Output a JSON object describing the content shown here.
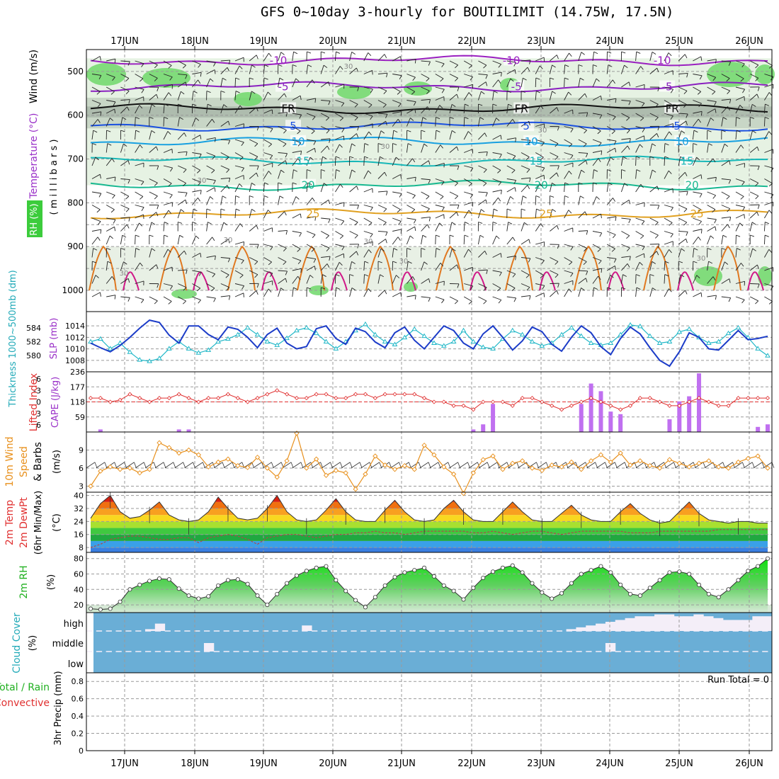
{
  "title": "GFS 0~10day 3-hourly for BOUTILIMIT (14.75W, 17.5N)",
  "dates": [
    "17JUN",
    "18JUN",
    "19JUN",
    "20JUN",
    "21JUN",
    "22JUN",
    "23JUN",
    "24JUN",
    "25JUN",
    "26JUN"
  ],
  "run_total_label": "Run Total = 0",
  "colors": {
    "frame": "#000000",
    "grid": "#9a9a9a",
    "slp": "#1c3cc8",
    "thickness": "#22b8c8",
    "lifted": "#e03030",
    "cape": "#c070f0",
    "wind": "#e8901c",
    "rh": "#22c422",
    "cloud": "#6aaed6",
    "clear": "#f4eef8",
    "label_red": "#e03030",
    "label_purple": "#9a30c8",
    "label_green": "#20b020",
    "label_blue": "#2050e0",
    "label_orange": "#e8901c",
    "label_cyan": "#22aab8"
  },
  "panel_labels": {
    "upper": {
      "wind": "Wind (m/s)",
      "temp": "Temperature (°C)",
      "rh": "RH (%)",
      "pressure": "( m i l l i b a r s )"
    },
    "slp": {
      "thickness": "Thickness 1000~500mb (dm)",
      "slp": "SLP (mb)"
    },
    "stability": {
      "li": "Lifted Index",
      "cape": "CAPE (J/kg)"
    },
    "wind10": {
      "a": "10m Wind",
      "b": "Speed",
      "c": "& Barbs",
      "unit": "(m/s)"
    },
    "temp2m": {
      "a": "2m Temp",
      "b": "2m DewPt",
      "c": "(6hr Min/Max)",
      "unit": "(°C)"
    },
    "rh2m": {
      "a": "2m RH",
      "unit": "(%)"
    },
    "cloud": {
      "a": "Cloud Cover",
      "unit": "(%)"
    },
    "precip": {
      "a": "Total / Rain",
      "b": "Convective",
      "c": "3hr Precip (mm)"
    }
  },
  "chart_data": [
    {
      "type": "contour",
      "panel": "upper-air",
      "ylabel": "millibars",
      "yticks": [
        500,
        600,
        700,
        800,
        900,
        1000
      ],
      "ylim": [
        450,
        1000
      ],
      "temperature_contours": [
        {
          "label": "-10",
          "pressure": 475
        },
        {
          "label": "-5",
          "pressure": 535
        },
        {
          "label": "FR",
          "pressure": 585
        },
        {
          "label": "5",
          "pressure": 625
        },
        {
          "label": "10",
          "pressure": 660
        },
        {
          "label": "15",
          "pressure": 705
        },
        {
          "label": "20",
          "pressure": 760
        },
        {
          "label": "25",
          "pressure": 825
        }
      ],
      "rh_label": "30"
    },
    {
      "type": "line",
      "panel": "SLP / thickness",
      "slp_ticks": [
        1008,
        1010,
        1012,
        1014
      ],
      "thickness_ticks": [
        580,
        582,
        584
      ],
      "slp_series": [
        1011.0,
        1010.2,
        1009.5,
        1010.6,
        1012.0,
        1013.6,
        1015.0,
        1014.6,
        1012.4,
        1011.0,
        1014.0,
        1014.0,
        1012.5,
        1011.6,
        1013.8,
        1013.4,
        1012.0,
        1010.2,
        1012.5,
        1013.6,
        1011.0,
        1010.0,
        1010.4,
        1013.5,
        1014.0,
        1011.8,
        1010.8,
        1013.6,
        1013.0,
        1011.2,
        1010.2,
        1012.8,
        1013.8,
        1011.5,
        1010.0,
        1012.0,
        1014.0,
        1013.2,
        1011.0,
        1010.0,
        1012.6,
        1014.0,
        1012.0,
        1009.8,
        1011.4,
        1013.8,
        1013.0,
        1010.8,
        1009.6,
        1012.0,
        1014.0,
        1012.8,
        1010.4,
        1009.0,
        1011.8,
        1013.8,
        1012.6,
        1010.2,
        1008.0,
        1007.0,
        1009.5,
        1012.8,
        1012.0,
        1010.0,
        1009.8,
        1011.5,
        1013.2,
        1011.6,
        1011.8,
        1012.2
      ],
      "thickness_series": [
        582.0,
        582.4,
        581.0,
        581.8,
        580.5,
        579.4,
        579.2,
        579.6,
        581.0,
        582.0,
        581.0,
        580.4,
        580.8,
        582.0,
        582.4,
        583.0,
        584.0,
        583.0,
        582.0,
        581.5,
        582.5,
        583.6,
        584.0,
        583.2,
        582.0,
        581.0,
        582.0,
        583.6,
        584.5,
        583.0,
        582.0,
        581.6,
        582.6,
        583.8,
        582.8,
        581.8,
        581.4,
        582.0,
        583.6,
        582.0,
        581.2,
        581.0,
        582.4,
        583.6,
        583.0,
        582.0,
        581.4,
        581.8,
        583.0,
        584.0,
        582.8,
        581.8,
        581.5,
        581.8,
        583.0,
        584.4,
        584.2,
        582.8,
        581.8,
        582.0,
        583.4,
        583.8,
        582.6,
        581.8,
        582.0,
        583.2,
        584.0,
        582.6,
        581.0,
        580.0
      ]
    },
    {
      "type": "bar+line",
      "panel": "Lifted Index / CAPE",
      "li_ticks": [
        -6,
        -3,
        0,
        3,
        6
      ],
      "cape_ticks": [
        59,
        118,
        177,
        236
      ],
      "li_series": [
        -1,
        -1,
        0,
        -0.5,
        -2,
        -1,
        0,
        -1,
        -1,
        -2,
        -1,
        0,
        -1,
        -1,
        -2,
        -1,
        0,
        -1,
        -2,
        -3,
        -2,
        -1,
        -1,
        -2,
        -2,
        -1,
        -1,
        -2,
        -2,
        -1,
        -2,
        -2,
        -2,
        -2,
        -1,
        0,
        0,
        1,
        1,
        2,
        0,
        0,
        0,
        1,
        -1,
        -1,
        0,
        1,
        2,
        1,
        0,
        -1,
        0,
        1,
        2,
        1,
        -1,
        -1,
        0,
        1,
        1,
        0,
        -1,
        0,
        1,
        1,
        -1,
        -1,
        -1,
        -1
      ],
      "cape_series": [
        0,
        10,
        0,
        0,
        0,
        0,
        0,
        0,
        0,
        10,
        10,
        0,
        0,
        0,
        0,
        0,
        0,
        0,
        0,
        0,
        0,
        0,
        0,
        0,
        0,
        0,
        0,
        0,
        0,
        0,
        0,
        0,
        0,
        0,
        0,
        0,
        0,
        0,
        0,
        10,
        30,
        110,
        0,
        0,
        0,
        0,
        0,
        0,
        0,
        0,
        110,
        190,
        160,
        80,
        70,
        0,
        0,
        0,
        0,
        50,
        120,
        140,
        230,
        0,
        0,
        0,
        0,
        0,
        20,
        30
      ]
    },
    {
      "type": "line",
      "panel": "10m Wind Speed",
      "ylim": [
        2,
        12
      ],
      "yticks": [
        3,
        6,
        9
      ],
      "series": [
        3.0,
        5.5,
        6.2,
        5.8,
        6.0,
        5.2,
        5.8,
        10.2,
        9.4,
        8.5,
        9.0,
        8.2,
        6.2,
        7.0,
        7.5,
        6.4,
        6.1,
        7.8,
        6.0,
        4.5,
        7.2,
        11.8,
        6.0,
        7.5,
        4.8,
        5.6,
        5.2,
        2.5,
        5.0,
        8.0,
        6.5,
        5.8,
        6.4,
        5.8,
        9.8,
        8.2,
        6.2,
        5.0,
        1.8,
        5.2,
        7.4,
        8.0,
        5.8,
        6.8,
        7.2,
        6.0,
        5.6,
        6.5,
        6.2,
        7.0,
        5.8,
        7.2,
        8.2,
        7.0,
        8.5,
        6.5,
        7.2,
        6.4,
        6.0,
        7.4,
        6.8,
        6.2,
        6.8,
        7.2,
        6.2,
        6.0,
        7.0,
        7.6,
        8.0,
        6.0
      ]
    },
    {
      "type": "area",
      "panel": "2m Temp",
      "yticks": [
        8,
        16,
        24,
        32,
        40
      ],
      "ylim": [
        5,
        42
      ],
      "temp_series": [
        26,
        35,
        40,
        30,
        26,
        27,
        31,
        36,
        28,
        25,
        24,
        25,
        30,
        39,
        32,
        26,
        25,
        26,
        32,
        40,
        30,
        25,
        24,
        25,
        31,
        38,
        30,
        25,
        24,
        24,
        31,
        37,
        30,
        25,
        24,
        25,
        32,
        37,
        30,
        25,
        24,
        24,
        30,
        36,
        30,
        25,
        24,
        24,
        29,
        34,
        28,
        25,
        24,
        24,
        30,
        35,
        29,
        25,
        23,
        24,
        30,
        36,
        29,
        25,
        24,
        23,
        24,
        24,
        23,
        23
      ],
      "dewpt_series": [
        8,
        10,
        13,
        14,
        15,
        15,
        14,
        13,
        13,
        14,
        14,
        11,
        14,
        15,
        16,
        15,
        13,
        10,
        14,
        15,
        16,
        16,
        15,
        14,
        15,
        16,
        16,
        17,
        17,
        18,
        17,
        17,
        16,
        17,
        18,
        18,
        18,
        18,
        18,
        17,
        17,
        18,
        17,
        16,
        17,
        18,
        18,
        17,
        16,
        17,
        18,
        18,
        18,
        18,
        18,
        17,
        17,
        17,
        18,
        18,
        18,
        18,
        18,
        18,
        19,
        19,
        19,
        19,
        19,
        19
      ]
    },
    {
      "type": "area",
      "panel": "2m RH",
      "yticks": [
        20,
        40,
        60,
        80
      ],
      "ylim": [
        10,
        88
      ],
      "series": [
        15,
        14,
        15,
        24,
        40,
        46,
        51,
        54,
        53,
        41,
        32,
        28,
        31,
        45,
        52,
        53,
        47,
        32,
        20,
        34,
        48,
        58,
        64,
        68,
        70,
        52,
        38,
        26,
        17,
        30,
        45,
        56,
        62,
        65,
        68,
        57,
        45,
        38,
        27,
        42,
        55,
        63,
        68,
        71,
        62,
        48,
        36,
        28,
        35,
        48,
        60,
        65,
        70,
        62,
        46,
        34,
        32,
        42,
        52,
        62,
        63,
        60,
        46,
        34,
        30,
        40,
        52,
        64,
        70,
        80
      ]
    },
    {
      "type": "table",
      "panel": "Cloud Cover",
      "levels": [
        "high",
        "middle",
        "low"
      ],
      "high_series": [
        0,
        0,
        0,
        0,
        0,
        0,
        10,
        40,
        0,
        0,
        0,
        0,
        0,
        0,
        0,
        0,
        0,
        0,
        0,
        0,
        0,
        0,
        30,
        0,
        0,
        0,
        0,
        0,
        0,
        0,
        0,
        0,
        0,
        0,
        0,
        0,
        0,
        0,
        0,
        0,
        0,
        0,
        0,
        0,
        0,
        0,
        0,
        0,
        0,
        10,
        20,
        30,
        40,
        50,
        60,
        70,
        80,
        80,
        90,
        90,
        80,
        80,
        90,
        80,
        70,
        60,
        60,
        60,
        80,
        80
      ],
      "middle_series": [
        0,
        0,
        0,
        0,
        0,
        0,
        0,
        0,
        0,
        0,
        0,
        0,
        50,
        0,
        0,
        0,
        0,
        0,
        0,
        0,
        0,
        0,
        0,
        0,
        0,
        0,
        0,
        0,
        0,
        0,
        0,
        0,
        0,
        0,
        0,
        0,
        0,
        0,
        0,
        0,
        0,
        0,
        0,
        0,
        0,
        0,
        0,
        0,
        0,
        0,
        0,
        0,
        0,
        50,
        0,
        0,
        0,
        0,
        0,
        0,
        0,
        0,
        0,
        0,
        0,
        0,
        0,
        0,
        0,
        0
      ]
    },
    {
      "type": "bar",
      "panel": "3hr Precip",
      "yticks": [
        0,
        0.2,
        0.4,
        0.6,
        0.8
      ],
      "ylim": [
        0,
        0.9
      ],
      "values": []
    }
  ]
}
